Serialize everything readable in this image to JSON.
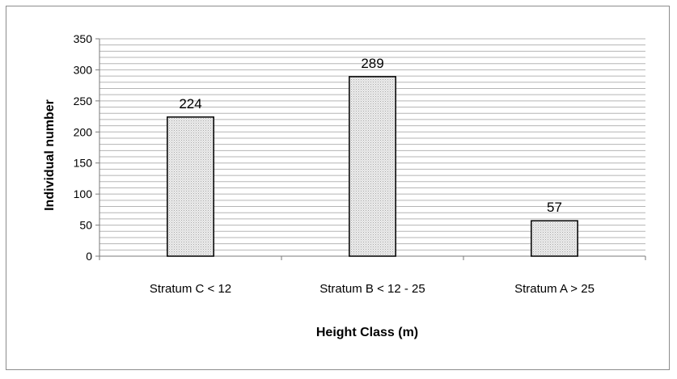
{
  "chart_data": {
    "type": "bar",
    "title": "",
    "xlabel": "Height Class (m)",
    "ylabel": "Individual number",
    "categories": [
      "Stratum C < 12",
      "Stratum B < 12 - 25",
      "Stratum A > 25"
    ],
    "values": [
      224,
      289,
      57
    ],
    "data_labels": [
      "224",
      "289",
      "57"
    ],
    "ylim": [
      0,
      350
    ],
    "y_ticks": [
      0,
      50,
      100,
      150,
      200,
      250,
      300,
      350
    ],
    "y_tick_labels": [
      "0",
      "50",
      "100",
      "150",
      "200",
      "250",
      "300",
      "350"
    ],
    "minor_gridlines_every": 10,
    "grid": true,
    "legend": false,
    "bar_fill": "#e4e4e4",
    "bar_stroke": "#000000",
    "gridline_color": "#b5b5b5"
  }
}
